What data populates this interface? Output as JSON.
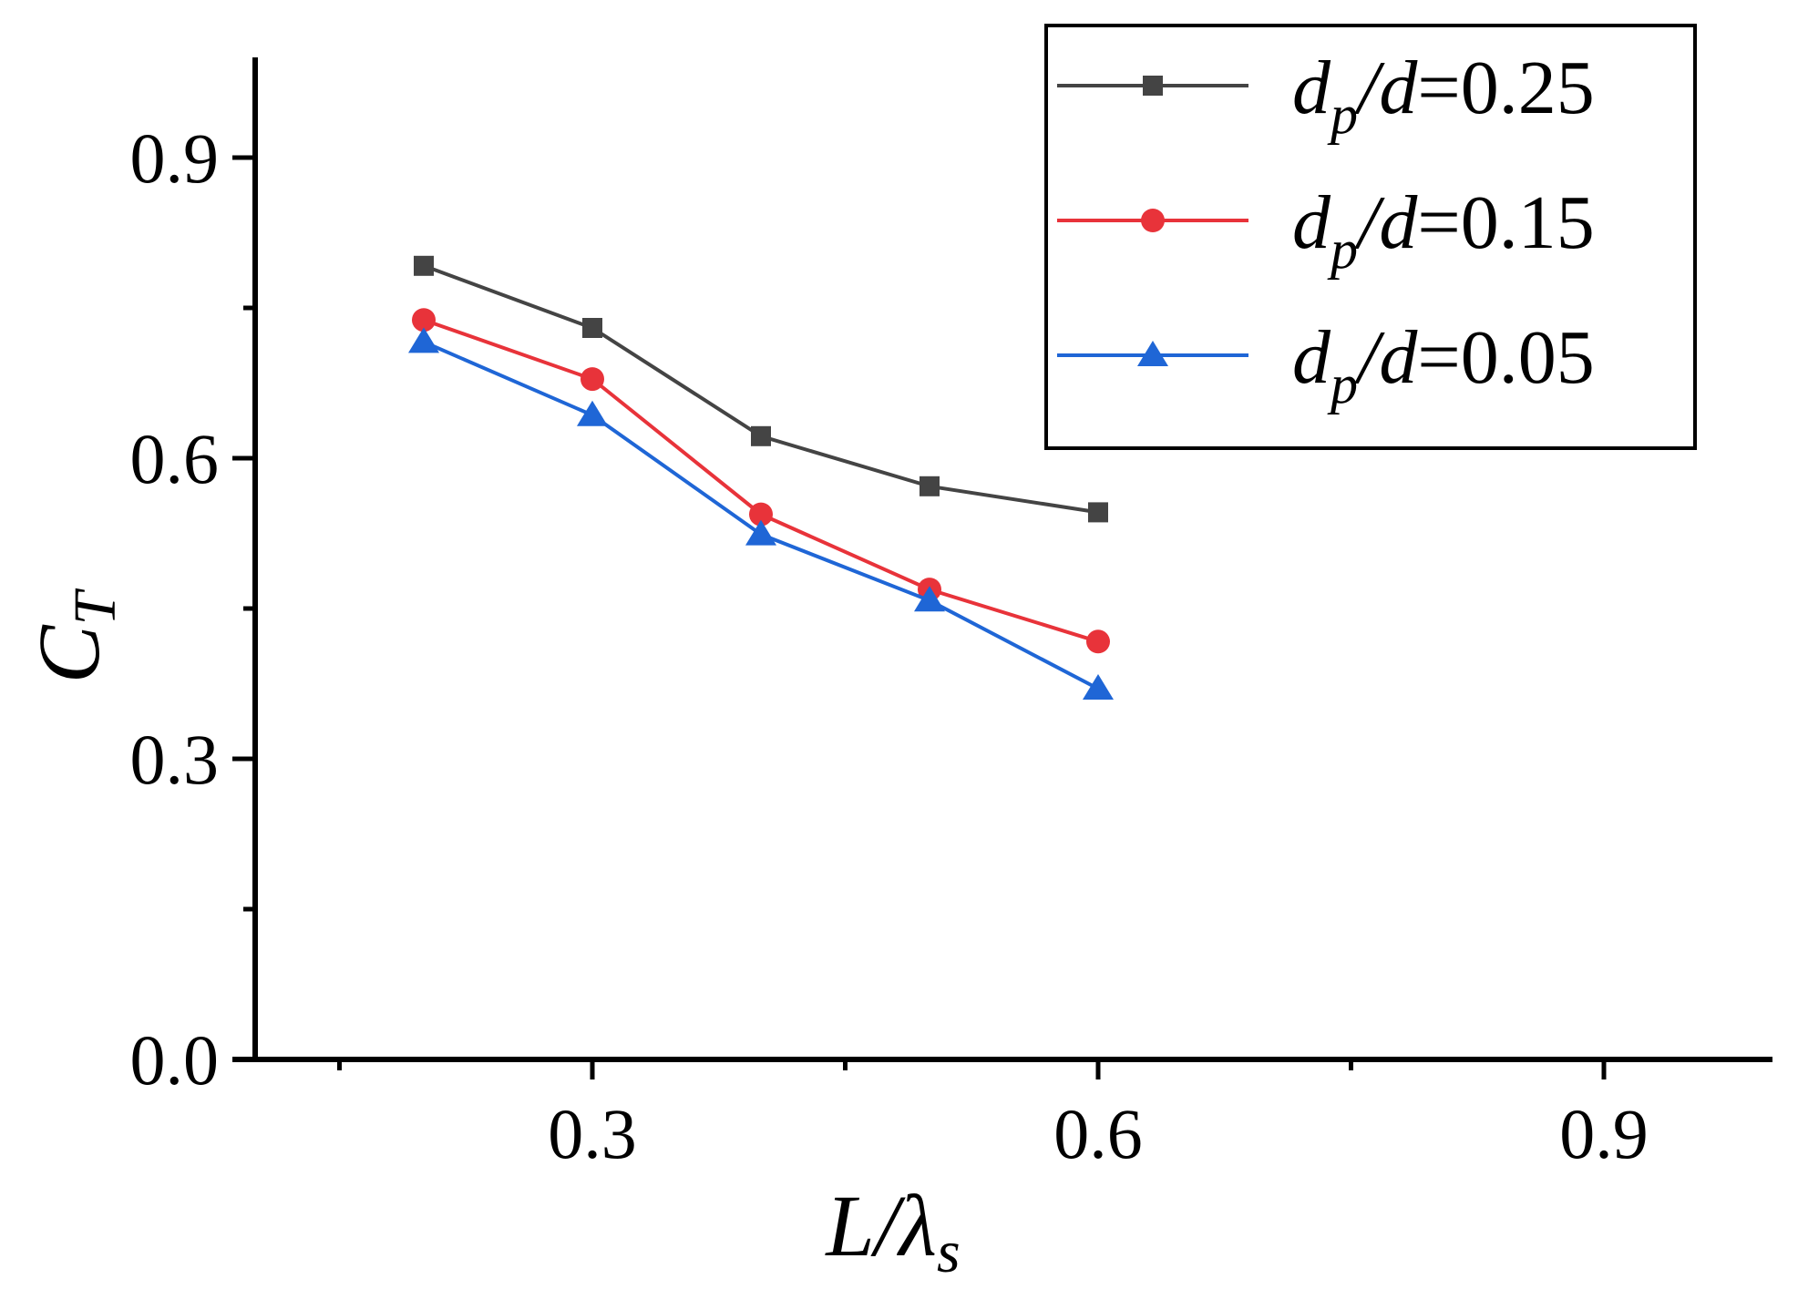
{
  "chart_data": {
    "type": "line",
    "title": "",
    "xlabel": {
      "main": "L/λ",
      "sub": "s"
    },
    "ylabel": {
      "main": "C",
      "sub": "T"
    },
    "xlim": [
      0.1,
      1.0
    ],
    "ylim": [
      0.0,
      1.0
    ],
    "x_ticks": [
      0.3,
      0.6,
      0.9
    ],
    "x_tick_labels": [
      "0.3",
      "0.6",
      "0.9"
    ],
    "y_ticks": [
      0.0,
      0.3,
      0.6,
      0.9
    ],
    "y_tick_labels": [
      "0.0",
      "0.3",
      "0.6",
      "0.9"
    ],
    "grid": false,
    "legend_position": "top-right",
    "x": [
      0.2,
      0.3,
      0.4,
      0.5,
      0.6
    ],
    "series": [
      {
        "name": "dp/d=0.25",
        "legend": {
          "var": "d",
          "sub": "p",
          "rest": "/",
          "var2": "d",
          "value": "=0.25"
        },
        "marker": "square",
        "color": "#444444",
        "values": [
          0.792,
          0.73,
          0.622,
          0.572,
          0.546
        ]
      },
      {
        "name": "dp/d=0.15",
        "legend": {
          "var": "d",
          "sub": "p",
          "rest": "/",
          "var2": "d",
          "value": "=0.15"
        },
        "marker": "circle",
        "color": "#e8333a",
        "values": [
          0.738,
          0.679,
          0.544,
          0.469,
          0.417
        ]
      },
      {
        "name": "dp/d=0.05",
        "legend": {
          "var": "d",
          "sub": "p",
          "rest": "/",
          "var2": "d",
          "value": "=0.05"
        },
        "marker": "triangle",
        "color": "#1f66d6",
        "values": [
          0.716,
          0.643,
          0.524,
          0.458,
          0.37
        ]
      }
    ]
  }
}
